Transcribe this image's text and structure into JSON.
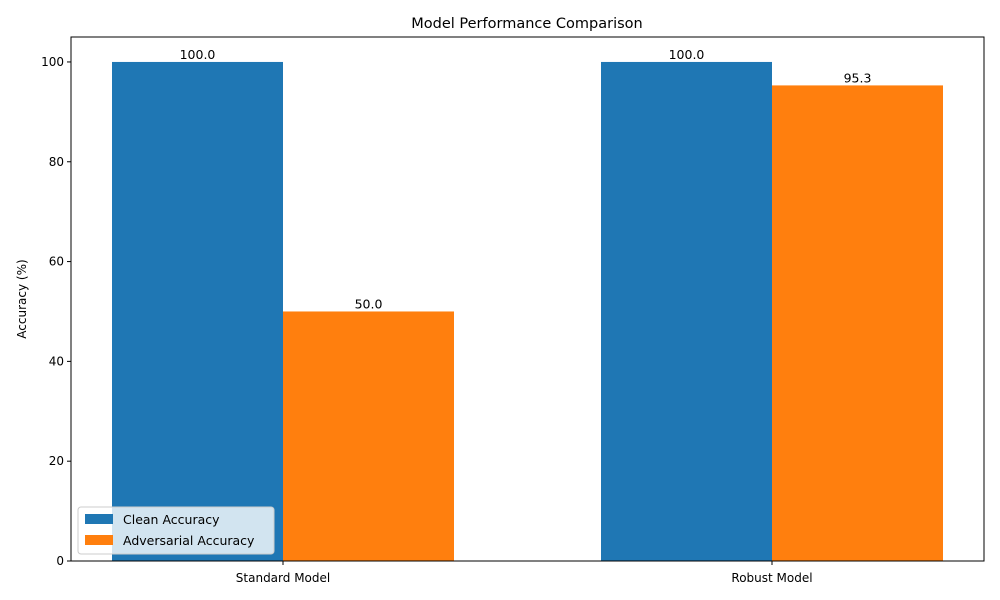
{
  "chart_data": {
    "type": "bar",
    "title": "Model Performance Comparison",
    "xlabel": "",
    "ylabel": "Accuracy (%)",
    "categories": [
      "Standard Model",
      "Robust Model"
    ],
    "series": [
      {
        "name": "Clean Accuracy",
        "values": [
          100.0,
          100.0
        ],
        "color": "#1f77b4",
        "labels": [
          "100.0",
          "100.0"
        ]
      },
      {
        "name": "Adversarial Accuracy",
        "values": [
          50.0,
          95.3
        ],
        "color": "#ff7f0e",
        "labels": [
          "50.0",
          "95.3"
        ]
      }
    ],
    "ylim": [
      0,
      105
    ],
    "yticks": [
      0,
      20,
      40,
      60,
      80,
      100
    ],
    "ytick_labels": [
      "0",
      "20",
      "40",
      "60",
      "80",
      "100"
    ],
    "grid": false,
    "legend_position": "lower-left"
  }
}
